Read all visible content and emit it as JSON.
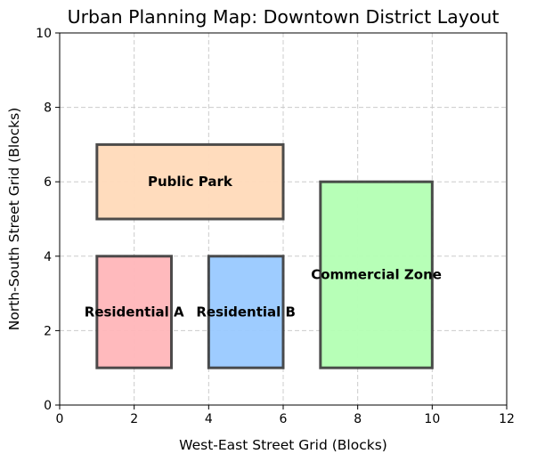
{
  "chart_data": {
    "type": "rectangles",
    "title": "Urban Planning Map: Downtown District Layout",
    "xlabel": "West-East Street Grid (Blocks)",
    "ylabel": "North-South Street Grid (Blocks)",
    "xlim": [
      0,
      12
    ],
    "ylim": [
      0,
      10
    ],
    "xticks": [
      0,
      2,
      4,
      6,
      8,
      10,
      12
    ],
    "yticks": [
      0,
      2,
      4,
      6,
      8,
      10
    ],
    "grid": true,
    "edge_color": "#3a3a3a",
    "zones": [
      {
        "label": "Public Park",
        "x": 1,
        "y": 5,
        "width": 5,
        "height": 2,
        "color": "#ffdab9",
        "label_x": 3.5,
        "label_y": 6
      },
      {
        "label": "Residential A",
        "x": 1,
        "y": 1,
        "width": 2,
        "height": 3,
        "color": "#ffb6b9",
        "label_x": 2,
        "label_y": 2.5
      },
      {
        "label": "Residential B",
        "x": 4,
        "y": 1,
        "width": 2,
        "height": 3,
        "color": "#99c9ff",
        "label_x": 5,
        "label_y": 2.5
      },
      {
        "label": "Commercial Zone",
        "x": 7,
        "y": 1,
        "width": 3,
        "height": 5,
        "color": "#b3ffb3",
        "label_x": 8.5,
        "label_y": 3.5
      }
    ]
  }
}
